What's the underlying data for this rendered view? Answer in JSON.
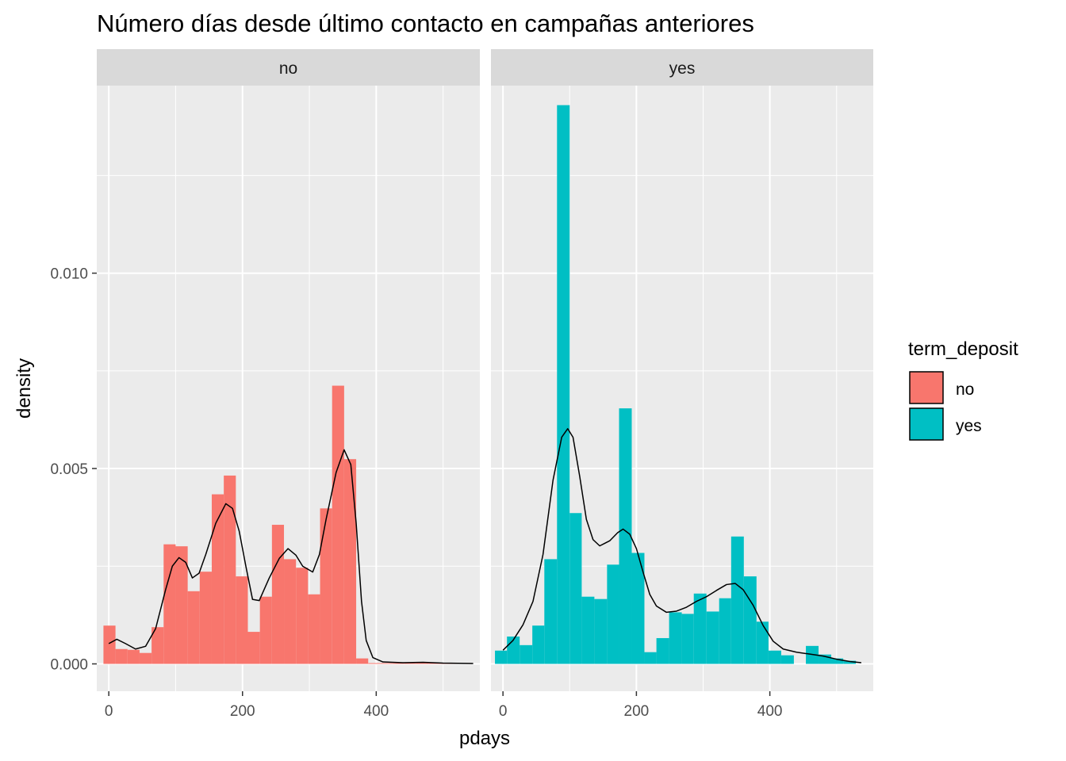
{
  "chart_data": {
    "type": "histogram",
    "title": "Número días desde último contacto en campañas anteriores",
    "xlabel": "pdays",
    "ylabel": "density",
    "xlim": [
      -18,
      555
    ],
    "ylim": [
      -0.0007,
      0.0148
    ],
    "x_ticks": [
      0,
      200,
      400
    ],
    "x_tick_labels": [
      "0",
      "200",
      "400"
    ],
    "y_ticks": [
      0,
      0.005,
      0.01
    ],
    "y_tick_labels": [
      "0.000",
      "0.005",
      "0.010"
    ],
    "bin_width": 20,
    "grid": true,
    "legend": {
      "title": "term_deposit",
      "position": "right",
      "items": [
        {
          "label": "no",
          "color": "#F8766D"
        },
        {
          "label": "yes",
          "color": "#00BFC4"
        }
      ]
    },
    "panels": [
      {
        "strip": "no",
        "color": "#F8766D",
        "bins": [
          {
            "x0": -8,
            "x1": 10,
            "density": 0.00098
          },
          {
            "x0": 10,
            "x1": 28,
            "density": 0.00038
          },
          {
            "x0": 28,
            "x1": 46,
            "density": 0.00036
          },
          {
            "x0": 46,
            "x1": 64,
            "density": 0.00028
          },
          {
            "x0": 64,
            "x1": 82,
            "density": 0.00094
          },
          {
            "x0": 82,
            "x1": 100,
            "density": 0.00306
          },
          {
            "x0": 100,
            "x1": 118,
            "density": 0.00301
          },
          {
            "x0": 118,
            "x1": 136,
            "density": 0.00186
          },
          {
            "x0": 136,
            "x1": 154,
            "density": 0.00236
          },
          {
            "x0": 154,
            "x1": 172,
            "density": 0.00434
          },
          {
            "x0": 172,
            "x1": 190,
            "density": 0.00482
          },
          {
            "x0": 190,
            "x1": 208,
            "density": 0.00224
          },
          {
            "x0": 208,
            "x1": 226,
            "density": 0.00082
          },
          {
            "x0": 226,
            "x1": 244,
            "density": 0.00172
          },
          {
            "x0": 244,
            "x1": 262,
            "density": 0.00356
          },
          {
            "x0": 262,
            "x1": 280,
            "density": 0.00268
          },
          {
            "x0": 280,
            "x1": 298,
            "density": 0.00246
          },
          {
            "x0": 298,
            "x1": 316,
            "density": 0.00178
          },
          {
            "x0": 316,
            "x1": 334,
            "density": 0.00398
          },
          {
            "x0": 334,
            "x1": 352,
            "density": 0.00712
          },
          {
            "x0": 352,
            "x1": 370,
            "density": 0.00524
          },
          {
            "x0": 370,
            "x1": 388,
            "density": 0.00014
          },
          {
            "x0": 388,
            "x1": 406,
            "density": 2e-05
          },
          {
            "x0": 406,
            "x1": 424,
            "density": 2e-05
          },
          {
            "x0": 424,
            "x1": 442,
            "density": 2e-05
          },
          {
            "x0": 442,
            "x1": 460,
            "density": 2e-05
          },
          {
            "x0": 460,
            "x1": 478,
            "density": 4e-05
          },
          {
            "x0": 478,
            "x1": 496,
            "density": 3e-05
          },
          {
            "x0": 496,
            "x1": 514,
            "density": 2e-05
          },
          {
            "x0": 514,
            "x1": 532,
            "density": 1e-05
          }
        ],
        "density_curve": [
          [
            0,
            0.00052
          ],
          [
            12,
            0.00063
          ],
          [
            25,
            0.00052
          ],
          [
            40,
            0.00038
          ],
          [
            55,
            0.00045
          ],
          [
            70,
            0.0009
          ],
          [
            85,
            0.0019
          ],
          [
            95,
            0.0025
          ],
          [
            105,
            0.00272
          ],
          [
            115,
            0.0026
          ],
          [
            125,
            0.0022
          ],
          [
            135,
            0.00232
          ],
          [
            145,
            0.0028
          ],
          [
            160,
            0.0036
          ],
          [
            175,
            0.0041
          ],
          [
            185,
            0.00398
          ],
          [
            195,
            0.0034
          ],
          [
            205,
            0.0025
          ],
          [
            215,
            0.00165
          ],
          [
            225,
            0.00162
          ],
          [
            240,
            0.0022
          ],
          [
            255,
            0.0027
          ],
          [
            268,
            0.00295
          ],
          [
            280,
            0.00278
          ],
          [
            290,
            0.0025
          ],
          [
            305,
            0.00235
          ],
          [
            315,
            0.0028
          ],
          [
            325,
            0.0037
          ],
          [
            340,
            0.0049
          ],
          [
            352,
            0.00548
          ],
          [
            362,
            0.0051
          ],
          [
            370,
            0.0036
          ],
          [
            378,
            0.0016
          ],
          [
            385,
            0.0006
          ],
          [
            395,
            0.00016
          ],
          [
            410,
            5e-05
          ],
          [
            440,
            3e-05
          ],
          [
            470,
            4e-05
          ],
          [
            500,
            2e-05
          ],
          [
            545,
            1e-05
          ]
        ]
      },
      {
        "strip": "yes",
        "color": "#00BFC4",
        "bins": [
          {
            "x0": -12,
            "x1": 6,
            "density": 0.00034
          },
          {
            "x0": 6,
            "x1": 25,
            "density": 0.0007
          },
          {
            "x0": 25,
            "x1": 44,
            "density": 0.00048
          },
          {
            "x0": 44,
            "x1": 62,
            "density": 0.00098
          },
          {
            "x0": 62,
            "x1": 81,
            "density": 0.00268
          },
          {
            "x0": 81,
            "x1": 100,
            "density": 0.0143
          },
          {
            "x0": 100,
            "x1": 118,
            "density": 0.00386
          },
          {
            "x0": 118,
            "x1": 137,
            "density": 0.00172
          },
          {
            "x0": 137,
            "x1": 156,
            "density": 0.00166
          },
          {
            "x0": 156,
            "x1": 174,
            "density": 0.00254
          },
          {
            "x0": 174,
            "x1": 193,
            "density": 0.00654
          },
          {
            "x0": 193,
            "x1": 212,
            "density": 0.00284
          },
          {
            "x0": 212,
            "x1": 230,
            "density": 0.0003
          },
          {
            "x0": 230,
            "x1": 249,
            "density": 0.00066
          },
          {
            "x0": 249,
            "x1": 268,
            "density": 0.00132
          },
          {
            "x0": 268,
            "x1": 286,
            "density": 0.00128
          },
          {
            "x0": 286,
            "x1": 305,
            "density": 0.0018
          },
          {
            "x0": 305,
            "x1": 324,
            "density": 0.00134
          },
          {
            "x0": 324,
            "x1": 342,
            "density": 0.00168
          },
          {
            "x0": 342,
            "x1": 361,
            "density": 0.00326
          },
          {
            "x0": 361,
            "x1": 380,
            "density": 0.00224
          },
          {
            "x0": 380,
            "x1": 398,
            "density": 0.00108
          },
          {
            "x0": 398,
            "x1": 417,
            "density": 0.00034
          },
          {
            "x0": 417,
            "x1": 436,
            "density": 0.00022
          },
          {
            "x0": 436,
            "x1": 454,
            "density": 0.0
          },
          {
            "x0": 454,
            "x1": 473,
            "density": 0.00046
          },
          {
            "x0": 473,
            "x1": 492,
            "density": 0.00024
          },
          {
            "x0": 492,
            "x1": 510,
            "density": 0.00014
          },
          {
            "x0": 510,
            "x1": 529,
            "density": 8e-05
          }
        ],
        "density_curve": [
          [
            0,
            0.00035
          ],
          [
            15,
            0.0006
          ],
          [
            30,
            0.001
          ],
          [
            45,
            0.0016
          ],
          [
            60,
            0.0028
          ],
          [
            75,
            0.0047
          ],
          [
            88,
            0.0058
          ],
          [
            97,
            0.00602
          ],
          [
            105,
            0.0058
          ],
          [
            115,
            0.0048
          ],
          [
            125,
            0.0037
          ],
          [
            135,
            0.00318
          ],
          [
            145,
            0.00302
          ],
          [
            160,
            0.00315
          ],
          [
            172,
            0.00336
          ],
          [
            180,
            0.00345
          ],
          [
            190,
            0.00332
          ],
          [
            200,
            0.00295
          ],
          [
            210,
            0.00235
          ],
          [
            220,
            0.00178
          ],
          [
            230,
            0.00148
          ],
          [
            245,
            0.00132
          ],
          [
            260,
            0.00135
          ],
          [
            275,
            0.00145
          ],
          [
            290,
            0.0016
          ],
          [
            305,
            0.00172
          ],
          [
            320,
            0.00188
          ],
          [
            335,
            0.00203
          ],
          [
            348,
            0.00206
          ],
          [
            360,
            0.0019
          ],
          [
            375,
            0.0015
          ],
          [
            390,
            0.00098
          ],
          [
            405,
            0.00058
          ],
          [
            420,
            0.00038
          ],
          [
            440,
            0.0003
          ],
          [
            460,
            0.00025
          ],
          [
            480,
            0.0002
          ],
          [
            500,
            0.00012
          ],
          [
            520,
            6e-05
          ],
          [
            537,
            3e-05
          ]
        ]
      }
    ]
  }
}
